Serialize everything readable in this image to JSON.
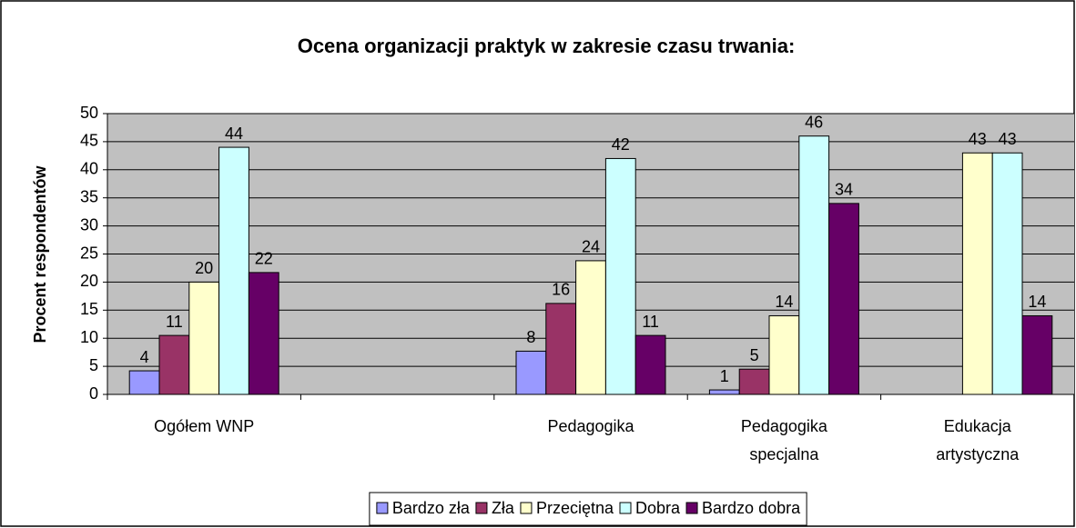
{
  "chart_data": {
    "type": "bar",
    "title": "Ocena organizacji praktyk w zakresie czasu trwania:",
    "y_label": "Procent respondentów",
    "categories": [
      "Ogółem WNP",
      null,
      "Pedagogika",
      "Pedagogika specjalna",
      "Edukacja artystyczna"
    ],
    "series": [
      {
        "name": "Bardzo zła",
        "color": "#9999ff",
        "values": [
          4.2,
          null,
          7.7,
          0.8,
          null
        ],
        "value_labels": [
          "4",
          null,
          "8",
          "1",
          null
        ]
      },
      {
        "name": "Zła",
        "color": "#993366",
        "values": [
          10.5,
          null,
          16.2,
          4.5,
          null
        ],
        "value_labels": [
          "11",
          null,
          "16",
          "5",
          null
        ]
      },
      {
        "name": "Przeciętna",
        "color": "#ffffcc",
        "values": [
          20,
          null,
          23.8,
          14,
          43
        ],
        "value_labels": [
          "20",
          null,
          "24",
          "14",
          "43"
        ]
      },
      {
        "name": "Dobra",
        "color": "#ccffff",
        "values": [
          44,
          null,
          42,
          46,
          43
        ],
        "value_labels": [
          "44",
          null,
          "42",
          "46",
          "43"
        ]
      },
      {
        "name": "Bardzo dobra",
        "color": "#660066",
        "values": [
          21.7,
          null,
          10.5,
          34,
          14
        ],
        "value_labels": [
          "22",
          null,
          "11",
          "34",
          "14"
        ]
      }
    ],
    "ylim": [
      0,
      50
    ],
    "yticks": [
      0,
      5,
      10,
      15,
      20,
      25,
      30,
      35,
      40,
      45,
      50
    ],
    "grid": true,
    "legend": "bottom"
  }
}
